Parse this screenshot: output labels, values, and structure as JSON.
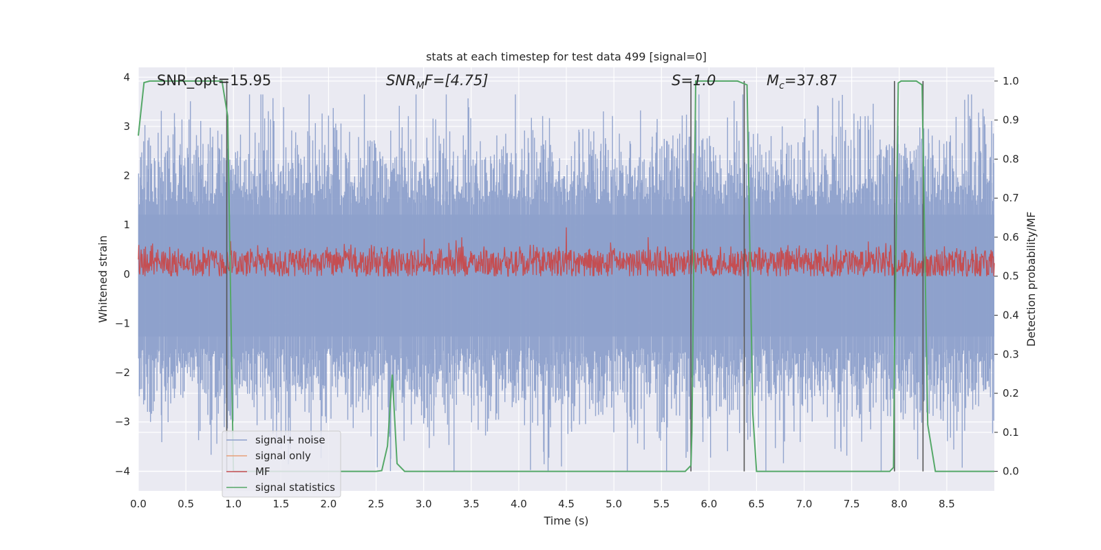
{
  "chart_data": {
    "type": "line",
    "title": "stats at each timestep for test data 499 [signal=0]",
    "xlabel": "Time (s)",
    "ylabel_left": "Whitened strain",
    "ylabel_right": "Detection probability/MF",
    "xlim": [
      0.0,
      9.0
    ],
    "ylim_left": [
      -4.4,
      4.2
    ],
    "ylim_right": [
      -0.05,
      1.035
    ],
    "x_ticks": [
      "0.0",
      "0.5",
      "1.0",
      "1.5",
      "2.0",
      "2.5",
      "3.0",
      "3.5",
      "4.0",
      "4.5",
      "5.0",
      "5.5",
      "6.0",
      "6.5",
      "7.0",
      "7.5",
      "8.0",
      "8.5"
    ],
    "y_ticks_left": [
      "4",
      "3",
      "2",
      "1",
      "0",
      "−1",
      "−2",
      "−3",
      "−4"
    ],
    "y_ticks_right": [
      "1.0",
      "0.9",
      "0.8",
      "0.7",
      "0.6",
      "0.5",
      "0.4",
      "0.3",
      "0.2",
      "0.1",
      "0.0"
    ],
    "grid": true,
    "legend_position": "lower-left",
    "annotations": {
      "snr_opt": "SNR_opt=15.95",
      "snr_mf_base": "SNR",
      "snr_mf_sub": "M",
      "snr_mf_rest": "F=[4.75]",
      "s_label": "S=1.0",
      "mc_base": "M",
      "mc_sub": "c",
      "mc_rest": "=37.87"
    },
    "series": [
      {
        "name": "signal+ noise",
        "color": "#8da0cb",
        "axis": "left",
        "description_points": "noise envelope roughly between -3.3 and 3.7",
        "envelope_upper": 2.2,
        "envelope_lower": -2.3,
        "peak_max": 3.65,
        "peak_min": -4.0
      },
      {
        "name": "signal only",
        "color": "#e8a07a",
        "axis": "left",
        "values": []
      },
      {
        "name": "MF",
        "color": "#c44e52",
        "axis": "right",
        "baseline": 0.53,
        "range": [
          0.5,
          0.6
        ],
        "spike": {
          "x": 4.5,
          "y": 0.625
        }
      },
      {
        "name": "signal statistics",
        "color": "#55a868",
        "axis": "right",
        "x": [
          0.0,
          0.06,
          0.12,
          0.2,
          0.5,
          0.88,
          0.94,
          1.0,
          1.5,
          2.0,
          2.5,
          2.56,
          2.62,
          2.67,
          2.72,
          2.8,
          3.5,
          4.5,
          5.5,
          5.75,
          5.81,
          5.82,
          5.86,
          5.9,
          6.0,
          6.3,
          6.4,
          6.46,
          6.5,
          7.0,
          7.5,
          7.9,
          7.94,
          7.95,
          7.99,
          8.02,
          8.08,
          8.18,
          8.24,
          8.3,
          8.38,
          8.5,
          9.0
        ],
        "y": [
          0.86,
          0.996,
          1.0,
          1.0,
          1.0,
          1.0,
          0.91,
          0.0,
          0.0,
          0.0,
          0.0,
          0.002,
          0.065,
          0.248,
          0.02,
          0.0,
          0.0,
          0.0,
          0.0,
          0.0,
          0.015,
          0.1,
          1.0,
          1.0,
          1.0,
          1.0,
          0.99,
          0.15,
          0.0,
          0.0,
          0.0,
          0.0,
          0.01,
          0.3,
          0.995,
          1.0,
          1.0,
          1.0,
          0.99,
          0.12,
          0.0,
          0.0,
          0.0
        ]
      }
    ],
    "vertical_markers_x": [
      0.93,
      5.81,
      6.37,
      7.95,
      8.25
    ],
    "colors": {
      "background": "#eaeaf2",
      "grid": "#ffffff",
      "marker": "#555555"
    }
  }
}
